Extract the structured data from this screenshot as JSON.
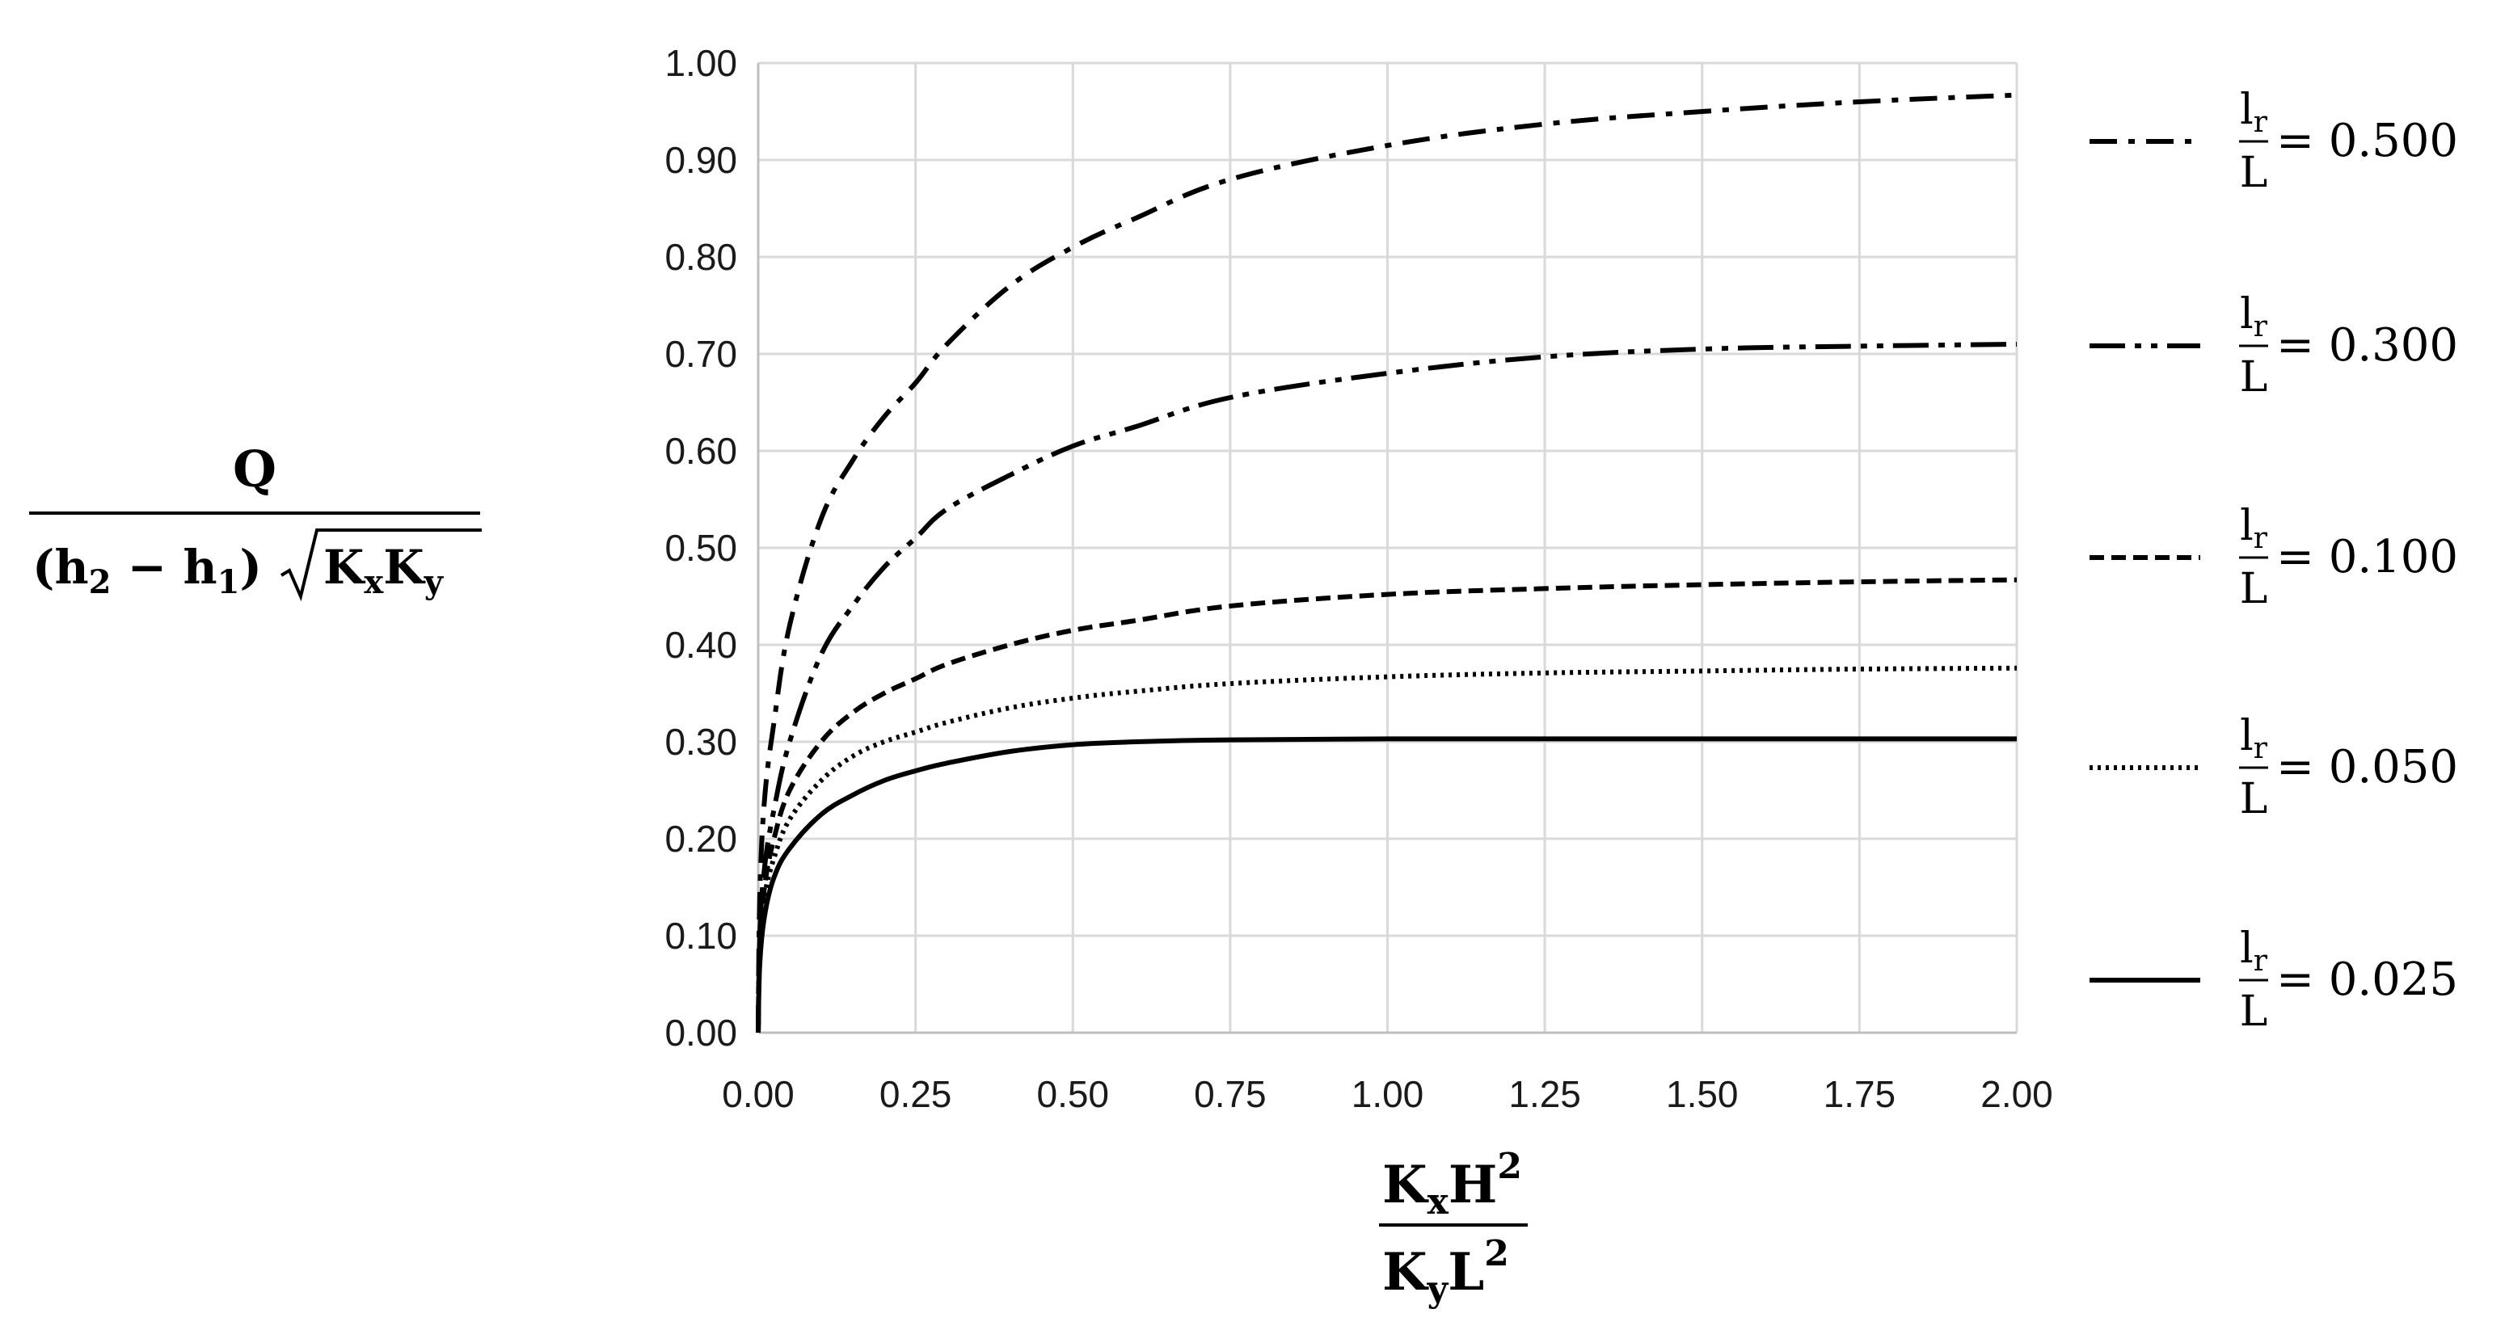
{
  "chart_data": {
    "type": "line",
    "title": "",
    "xlabel": {
      "numerator": [
        "K",
        "x",
        "H",
        "2"
      ],
      "denominator": [
        "K",
        "y",
        "L",
        "2"
      ]
    },
    "ylabel": {
      "numerator": "Q",
      "denominator": [
        "(h",
        "2",
        " − h",
        "1",
        ")",
        "K",
        "x",
        "K",
        "y"
      ]
    },
    "xlim": [
      0,
      2
    ],
    "ylim": [
      0,
      1
    ],
    "x_ticks": [
      "0.00",
      "0.25",
      "0.50",
      "0.75",
      "1.00",
      "1.25",
      "1.50",
      "1.75",
      "2.00"
    ],
    "y_ticks": [
      "0.00",
      "0.10",
      "0.20",
      "0.30",
      "0.40",
      "0.50",
      "0.60",
      "0.70",
      "0.80",
      "0.90",
      "1.00"
    ],
    "grid": true,
    "legend_position": "right",
    "x": [
      0,
      0.0025,
      0.01,
      0.025,
      0.05,
      0.1,
      0.15,
      0.2,
      0.25,
      0.3,
      0.4,
      0.5,
      0.6,
      0.75,
      1.0,
      1.25,
      1.5,
      1.75,
      2.0
    ],
    "series": [
      {
        "name": "l_r/L = 0.500",
        "legend": {
          "num": "l",
          "sub": "r",
          "den": "L",
          "value": "= 0.500"
        },
        "dash": "34,14,8,14",
        "values": [
          0,
          0.14,
          0.24,
          0.32,
          0.42,
          0.53,
          0.59,
          0.635,
          0.67,
          0.71,
          0.77,
          0.81,
          0.84,
          0.88,
          0.915,
          0.937,
          0.95,
          0.96,
          0.967
        ]
      },
      {
        "name": "l_r/L = 0.300",
        "legend": {
          "num": "l",
          "sub": "r",
          "den": "L",
          "value": "= 0.300"
        },
        "dash": "44,12,8,12,8,12",
        "values": [
          0,
          0.1,
          0.17,
          0.23,
          0.3,
          0.39,
          0.44,
          0.48,
          0.51,
          0.54,
          0.575,
          0.605,
          0.625,
          0.655,
          0.68,
          0.697,
          0.705,
          0.708,
          0.71
        ]
      },
      {
        "name": "l_r/L = 0.100",
        "legend": {
          "num": "l",
          "sub": "r",
          "den": "L",
          "value": "= 0.100"
        },
        "dash": "18,9",
        "values": [
          0,
          0.09,
          0.15,
          0.2,
          0.25,
          0.3,
          0.33,
          0.35,
          0.365,
          0.38,
          0.4,
          0.415,
          0.425,
          0.44,
          0.452,
          0.458,
          0.462,
          0.465,
          0.467
        ]
      },
      {
        "name": "l_r/L = 0.050",
        "legend": {
          "num": "l",
          "sub": "r",
          "den": "L",
          "value": "= 0.050"
        },
        "dash": "4,6",
        "values": [
          0,
          0.09,
          0.14,
          0.18,
          0.22,
          0.26,
          0.285,
          0.3,
          0.31,
          0.32,
          0.335,
          0.345,
          0.352,
          0.36,
          0.367,
          0.371,
          0.373,
          0.375,
          0.376
        ]
      },
      {
        "name": "l_r/L = 0.025",
        "legend": {
          "num": "l",
          "sub": "r",
          "den": "L",
          "value": "= 0.025"
        },
        "dash": "",
        "values": [
          0,
          0.07,
          0.12,
          0.16,
          0.19,
          0.225,
          0.245,
          0.26,
          0.27,
          0.278,
          0.29,
          0.297,
          0.3,
          0.302,
          0.303,
          0.303,
          0.303,
          0.303,
          0.303
        ]
      }
    ]
  }
}
